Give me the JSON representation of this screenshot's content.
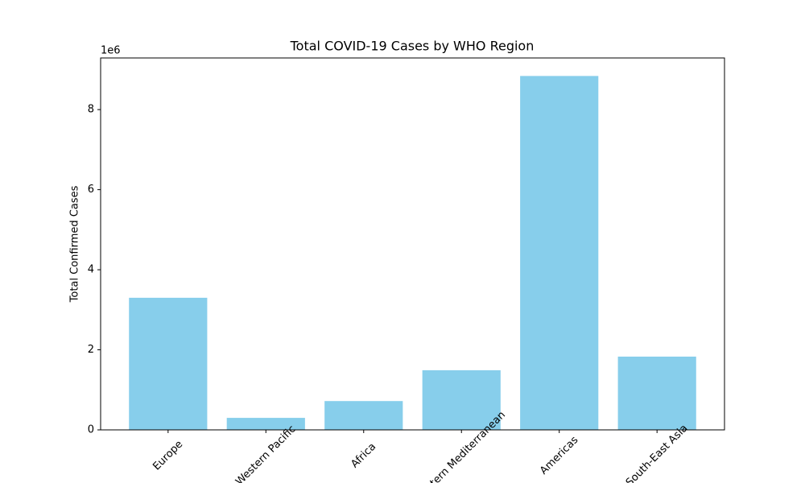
{
  "chart_data": {
    "type": "bar",
    "title": "Total COVID-19 Cases by WHO Region",
    "y_label": "Total Confirmed Cases",
    "y_offset_label": "1e6",
    "categories": [
      "Europe",
      "Western Pacific",
      "Africa",
      "Eastern Mediterranean",
      "Americas",
      "South-East Asia"
    ],
    "values": [
      3.3,
      0.3,
      0.72,
      1.49,
      8.84,
      1.83
    ],
    "color": "#87ceeb",
    "ylim": [
      0,
      9.29
    ],
    "yticks": [
      0,
      2,
      4,
      6,
      8
    ],
    "grid": false
  }
}
